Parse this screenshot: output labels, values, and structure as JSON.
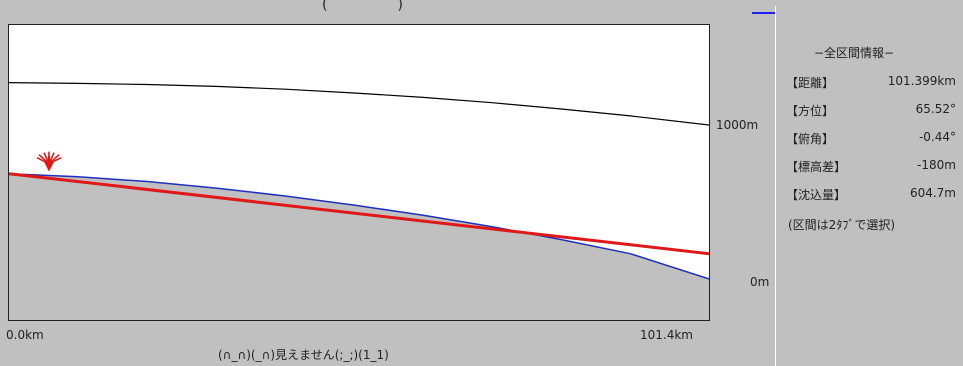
{
  "header": {
    "title": "(　　　　　)"
  },
  "chart": {
    "y_tick_top": "1000m",
    "y_tick_bottom": "0m",
    "x_start": "0.0km",
    "x_end": "101.4km",
    "status": "(∩_∩)(_∩)見えません(;_;)(1_1)",
    "colors": {
      "sky_line": "#000000",
      "terrain": "#c0c0c0",
      "terrain_line": "#1f2fbf",
      "sight_line": "#e01818",
      "marker": "#e01818"
    }
  },
  "chart_data": {
    "type": "line",
    "xlim": [
      0,
      101.4
    ],
    "ylim": [
      0,
      1000
    ],
    "series": [
      {
        "x": [
          0,
          10,
          20,
          30,
          40,
          50,
          60,
          70,
          80,
          90,
          101.4
        ],
        "values": [
          1270,
          1265,
          1258,
          1246,
          1228,
          1204,
          1176,
          1142,
          1102,
          1058,
          1000
        ]
      },
      {
        "x": [
          0,
          10,
          20,
          30,
          40,
          50,
          60,
          70,
          80,
          90,
          101.4
        ],
        "values": [
          690,
          670,
          640,
          598,
          548,
          490,
          425,
          352,
          270,
          180,
          20
        ]
      },
      {
        "x": [
          0,
          101.4
        ],
        "values": [
          690,
          180
        ]
      }
    ]
  },
  "info": {
    "title": "−全区間情報−",
    "rows": [
      {
        "label": "【距離】",
        "value": "101.399km"
      },
      {
        "label": "【方位】",
        "value": "65.52°"
      },
      {
        "label": "【俯角】",
        "value": "-0.44°"
      },
      {
        "label": "【標高差】",
        "value": "-180m"
      },
      {
        "label": "【沈込量】",
        "value": "604.7m"
      }
    ],
    "hint": "(区間は2ﾀﾌﾞで選択)"
  }
}
